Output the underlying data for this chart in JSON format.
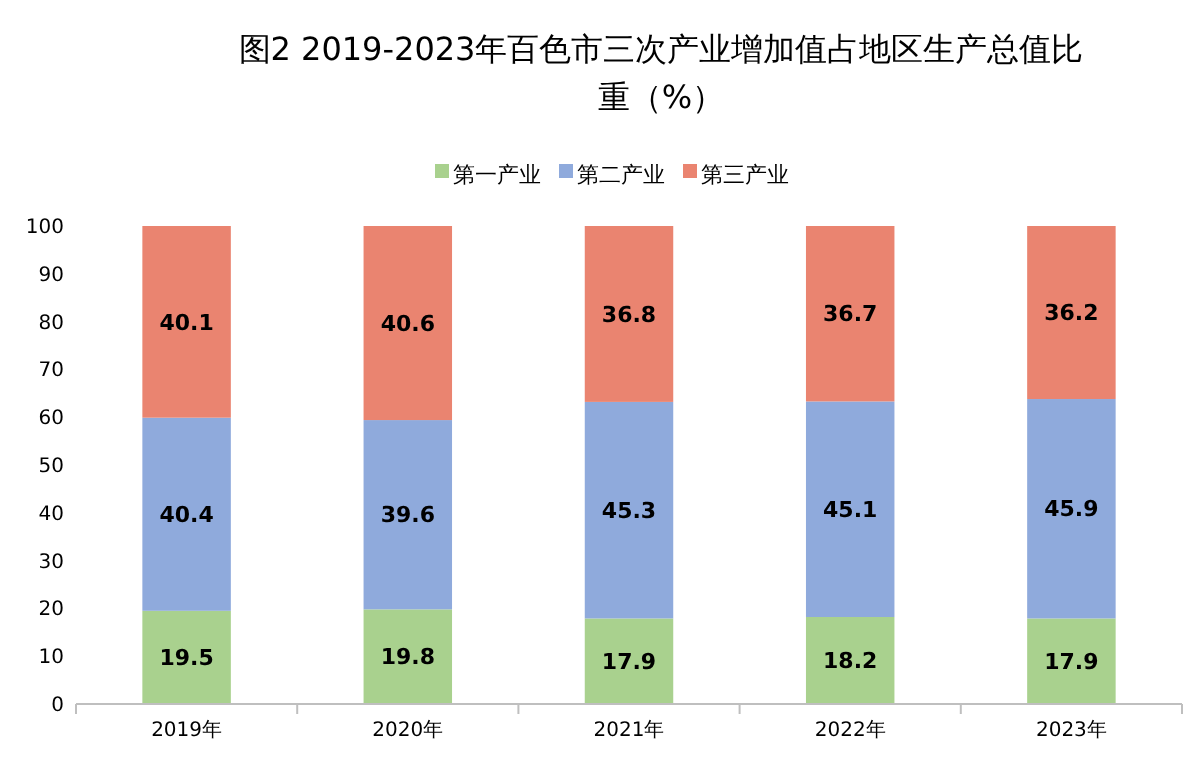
{
  "chart_data": {
    "type": "bar",
    "title": "图2  2019-2023年百色市三次产业增加值占地区生产总值比重（%）",
    "categories": [
      "2019年",
      "2020年",
      "2021年",
      "2022年",
      "2023年"
    ],
    "stacked": true,
    "data_labels": true,
    "legend": "top",
    "grid": false,
    "ylim": [
      0,
      100
    ],
    "yticks": [
      0,
      10,
      20,
      30,
      40,
      50,
      60,
      70,
      80,
      90,
      100
    ],
    "series": [
      {
        "name": "第一产业",
        "color": "#a9d18e",
        "values": [
          19.5,
          19.8,
          17.9,
          18.2,
          17.9
        ]
      },
      {
        "name": "第二产业",
        "color": "#8faadc",
        "values": [
          40.4,
          39.6,
          45.3,
          45.1,
          45.9
        ]
      },
      {
        "name": "第三产业",
        "color": "#ea8470",
        "values": [
          40.1,
          40.6,
          36.8,
          36.7,
          36.2
        ]
      }
    ]
  }
}
